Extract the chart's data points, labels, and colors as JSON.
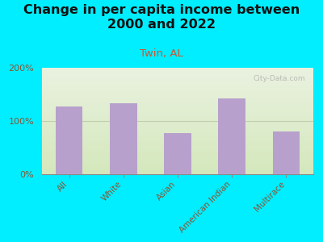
{
  "title": "Change in per capita income between\n2000 and 2022",
  "subtitle": "Twin, AL",
  "categories": [
    "All",
    "White",
    "Asian",
    "American Indian",
    "Multirace"
  ],
  "values": [
    128,
    133,
    78,
    142,
    80
  ],
  "bar_color": "#b8a0cc",
  "title_fontsize": 11.5,
  "subtitle_fontsize": 9.5,
  "subtitle_color": "#cc5533",
  "title_color": "#111111",
  "tick_label_color": "#885533",
  "background_outer": "#00eeff",
  "background_inner_top": "#eaf2e0",
  "background_inner_bottom": "#d4e8bc",
  "ylim": [
    0,
    200
  ],
  "yticks": [
    0,
    100,
    200
  ],
  "ytick_labels": [
    "0%",
    "100%",
    "200%"
  ],
  "watermark": "City-Data.com"
}
